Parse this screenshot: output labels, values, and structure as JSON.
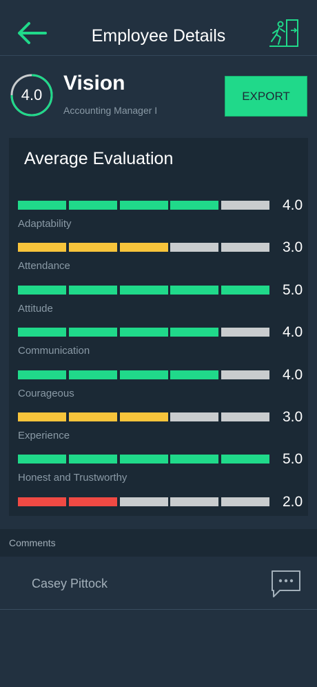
{
  "header": {
    "title": "Employee Details",
    "back_icon": "arrow-left-icon",
    "exit_icon": "exit-door-icon"
  },
  "profile": {
    "score": "4.0",
    "name": "Vision",
    "role": "Accounting Manager I",
    "export_label": "EXPORT"
  },
  "evaluation": {
    "title": "Average Evaluation",
    "max_segments": 5,
    "items": [
      {
        "label": "Adaptability",
        "value": "4.0",
        "filled": 4,
        "color": "#20d98a"
      },
      {
        "label": "Attendance",
        "value": "3.0",
        "filled": 3,
        "color": "#f8c43b"
      },
      {
        "label": "Attitude",
        "value": "5.0",
        "filled": 5,
        "color": "#20d98a"
      },
      {
        "label": "Communication",
        "value": "4.0",
        "filled": 4,
        "color": "#20d98a"
      },
      {
        "label": "Courageous",
        "value": "4.0",
        "filled": 4,
        "color": "#20d98a"
      },
      {
        "label": "Experience",
        "value": "3.0",
        "filled": 3,
        "color": "#f8c43b"
      },
      {
        "label": "Honest and Trustworthy",
        "value": "5.0",
        "filled": 5,
        "color": "#20d98a"
      },
      {
        "label": "",
        "value": "2.0",
        "filled": 2,
        "color": "#f04a44"
      }
    ]
  },
  "comments": {
    "section_label": "Comments",
    "items": [
      {
        "author": "Casey Pittock",
        "icon": "chat-bubble-icon"
      }
    ]
  },
  "colors": {
    "accent": "#20d98a",
    "warning": "#f8c43b",
    "danger": "#f04a44",
    "empty_segment": "#c9ccce"
  }
}
